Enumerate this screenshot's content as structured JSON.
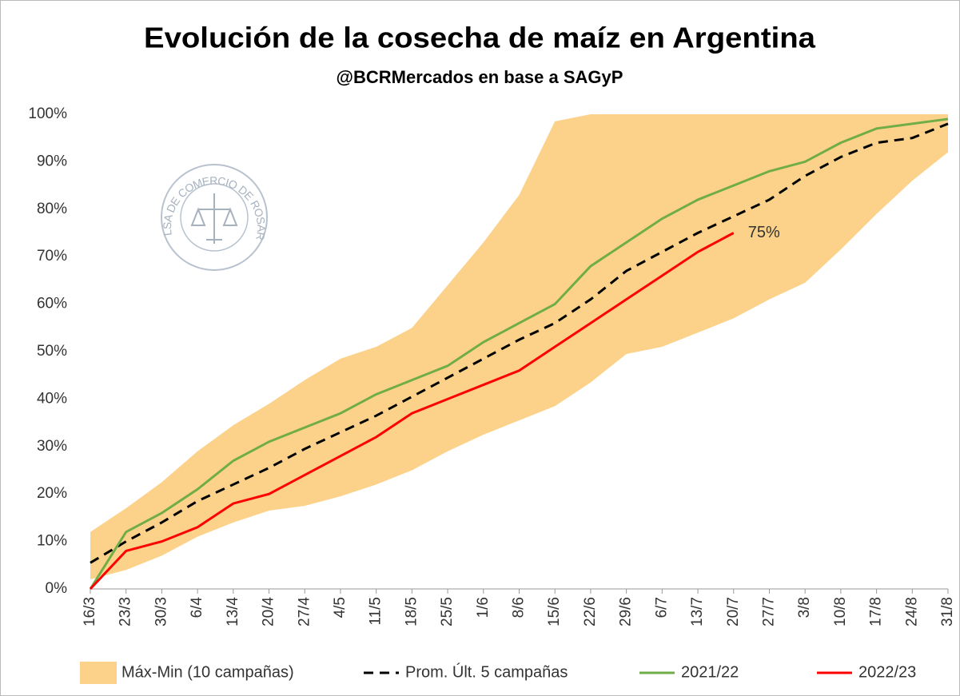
{
  "chart_data": {
    "type": "line",
    "title": "Evolución de la cosecha de maíz en Argentina",
    "subtitle": "@BCRMercados en base a SAGyP",
    "logo_text": "BOLSA DE COMERCIO DE ROSARIO",
    "categories": [
      "16/3",
      "23/3",
      "30/3",
      "6/4",
      "13/4",
      "20/4",
      "27/4",
      "4/5",
      "11/5",
      "18/5",
      "25/5",
      "1/6",
      "8/6",
      "15/6",
      "22/6",
      "29/6",
      "6/7",
      "13/7",
      "20/7",
      "27/7",
      "3/8",
      "10/8",
      "17/8",
      "24/8",
      "31/8"
    ],
    "band": {
      "name": "Máx-Min (10 campañas)",
      "color": "#fcd28a",
      "max": [
        12,
        17,
        22.5,
        29,
        34.5,
        39,
        44,
        48.5,
        51,
        55,
        64,
        73,
        83,
        98.5,
        100,
        100,
        100,
        100,
        100,
        100,
        100,
        100,
        100,
        100,
        100
      ],
      "min": [
        2,
        4,
        7,
        11,
        14,
        16.5,
        17.5,
        19.5,
        22,
        25,
        29,
        32.5,
        35.5,
        38.5,
        43.5,
        49.5,
        51,
        54,
        57,
        61,
        64.5,
        71.5,
        79,
        86,
        92
      ]
    },
    "series": [
      {
        "name": "Prom. Últ. 5 campañas",
        "color": "#000000",
        "dashed": true,
        "values": [
          5.5,
          10,
          14,
          18.5,
          22,
          25.5,
          29.5,
          33,
          36.5,
          40.5,
          44.5,
          48.5,
          52.5,
          56,
          61,
          67,
          71,
          75,
          78.5,
          82,
          87,
          91,
          94,
          95,
          98
        ]
      },
      {
        "name": "2021/22",
        "color": "#70ad47",
        "dashed": false,
        "values": [
          0,
          12,
          16,
          21,
          27,
          31,
          34,
          37,
          41,
          44,
          47,
          52,
          56,
          60,
          68,
          73,
          78,
          82,
          85,
          88,
          90,
          94,
          97,
          98,
          99
        ]
      },
      {
        "name": "2022/23",
        "color": "#ff0000",
        "dashed": false,
        "values": [
          0,
          8,
          10,
          13,
          18,
          20,
          24,
          28,
          32,
          37,
          40,
          43,
          46,
          51,
          56,
          61,
          66,
          71,
          75,
          null,
          null,
          null,
          null,
          null,
          null
        ],
        "value_labels": [
          null,
          null,
          null,
          null,
          null,
          null,
          null,
          null,
          null,
          null,
          null,
          null,
          null,
          null,
          null,
          null,
          null,
          null,
          "75%",
          null,
          null,
          null,
          null,
          null,
          null
        ]
      }
    ],
    "ylim": [
      0,
      100
    ],
    "yticks": [
      {
        "value": 0,
        "label": "0%"
      },
      {
        "value": 10,
        "label": "10%"
      },
      {
        "value": 20,
        "label": "20%"
      },
      {
        "value": 30,
        "label": "30%"
      },
      {
        "value": 40,
        "label": "40%"
      },
      {
        "value": 50,
        "label": "50%"
      },
      {
        "value": 60,
        "label": "60%"
      },
      {
        "value": 70,
        "label": "70%"
      },
      {
        "value": 80,
        "label": "80%"
      },
      {
        "value": 90,
        "label": "90%"
      },
      {
        "value": 100,
        "label": "100%"
      }
    ],
    "grid": false
  }
}
